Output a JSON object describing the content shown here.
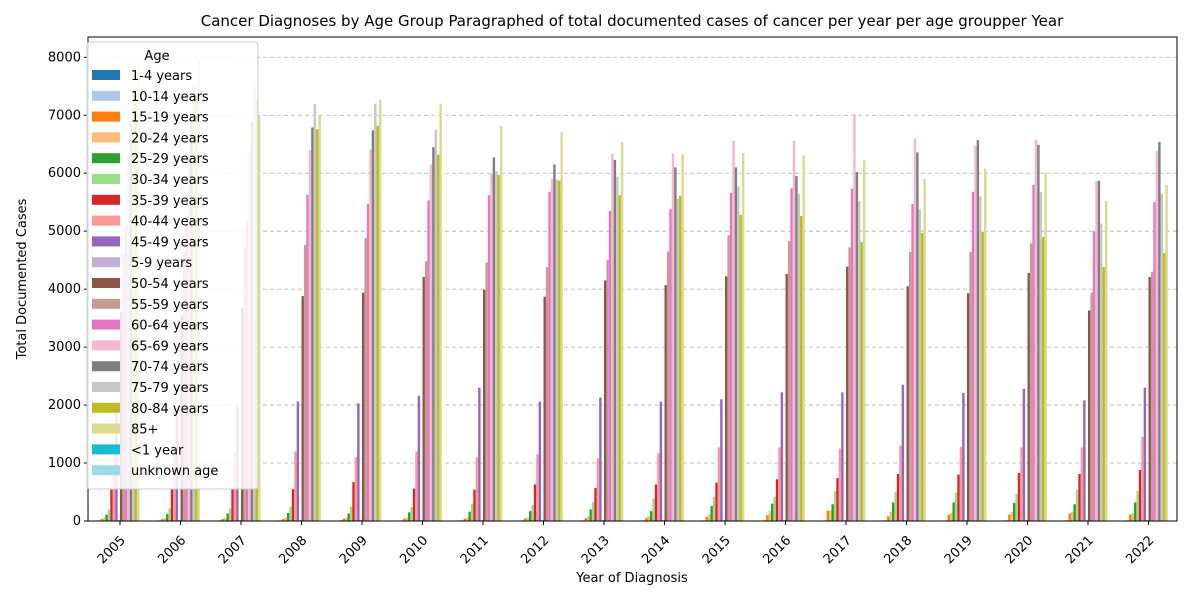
{
  "chart_data": {
    "type": "bar",
    "title": "Cancer Diagnoses by Age Group Paragraphed of total documented cases of cancer per year per age groupper Year",
    "xlabel": "Year of Diagnosis",
    "ylabel": "Total Documented Cases",
    "ylim": [
      0,
      8350
    ],
    "yticks": [
      0,
      1000,
      2000,
      3000,
      4000,
      5000,
      6000,
      7000,
      8000
    ],
    "grid": "y dashed",
    "legend_title": "Age",
    "legend_position": "upper-left",
    "categories": [
      "2005",
      "2006",
      "2007",
      "2008",
      "2009",
      "2010",
      "2011",
      "2012",
      "2013",
      "2014",
      "2015",
      "2016",
      "2017",
      "2018",
      "2019",
      "2020",
      "2021",
      "2022"
    ],
    "series": [
      {
        "name": "1-4 years",
        "color": "#1f77b4",
        "values": [
          10,
          10,
          10,
          10,
          10,
          10,
          10,
          10,
          10,
          10,
          10,
          10,
          10,
          10,
          10,
          10,
          10,
          10
        ]
      },
      {
        "name": "10-14 years",
        "color": "#aec7e8",
        "values": [
          15,
          15,
          15,
          15,
          15,
          15,
          15,
          15,
          15,
          15,
          15,
          15,
          15,
          15,
          15,
          15,
          15,
          15
        ]
      },
      {
        "name": "15-19 years",
        "color": "#ff7f0e",
        "values": [
          35,
          35,
          35,
          35,
          40,
          40,
          40,
          45,
          50,
          55,
          70,
          100,
          180,
          80,
          110,
          110,
          130,
          110
        ]
      },
      {
        "name": "20-24 years",
        "color": "#ffbb78",
        "values": [
          60,
          50,
          50,
          60,
          60,
          60,
          60,
          60,
          80,
          80,
          110,
          170,
          180,
          160,
          140,
          160,
          160,
          140
        ]
      },
      {
        "name": "25-29 years",
        "color": "#2ca02c",
        "values": [
          110,
          120,
          130,
          140,
          130,
          150,
          160,
          170,
          200,
          170,
          260,
          300,
          290,
          320,
          320,
          310,
          290,
          320
        ]
      },
      {
        "name": "30-34 years",
        "color": "#98df8a",
        "values": [
          200,
          220,
          220,
          250,
          250,
          240,
          300,
          280,
          330,
          390,
          420,
          420,
          510,
          510,
          490,
          470,
          540,
          520
        ]
      },
      {
        "name": "35-39 years",
        "color": "#d62728",
        "values": [
          560,
          580,
          560,
          550,
          670,
          560,
          540,
          630,
          570,
          630,
          660,
          720,
          740,
          810,
          800,
          830,
          810,
          880
        ]
      },
      {
        "name": "40-44 years",
        "color": "#ff9896",
        "values": [
          1150,
          1150,
          1180,
          1200,
          1100,
          1200,
          1100,
          1150,
          1080,
          1170,
          1270,
          1270,
          1250,
          1300,
          1280,
          1270,
          1270,
          1450
        ]
      },
      {
        "name": "45-49 years",
        "color": "#9467bd",
        "values": [
          2000,
          1950,
          1980,
          2060,
          2030,
          2160,
          2300,
          2060,
          2130,
          2060,
          2100,
          2220,
          2220,
          2350,
          2210,
          2280,
          2080,
          2300
        ]
      },
      {
        "name": "5-9 years",
        "color": "#c5b0d5",
        "values": [
          20,
          20,
          20,
          20,
          20,
          20,
          20,
          20,
          20,
          20,
          20,
          20,
          20,
          20,
          20,
          20,
          20,
          20
        ]
      },
      {
        "name": "50-54 years",
        "color": "#8c564b",
        "values": [
          3600,
          3550,
          3680,
          3880,
          3940,
          4210,
          3990,
          3870,
          4150,
          4070,
          4220,
          4260,
          4390,
          4050,
          3930,
          4280,
          3630,
          4210
        ]
      },
      {
        "name": "55-59 years",
        "color": "#c49c94",
        "values": [
          4600,
          4650,
          4720,
          4760,
          4880,
          4480,
          4460,
          4380,
          4500,
          4650,
          4930,
          4830,
          4720,
          4640,
          4640,
          4790,
          3940,
          4300
        ]
      },
      {
        "name": "60-64 years",
        "color": "#e377c2",
        "values": [
          5100,
          5150,
          5180,
          5630,
          5470,
          5530,
          5620,
          5680,
          5350,
          5380,
          5660,
          5740,
          5730,
          5470,
          5680,
          5800,
          5000,
          5500
        ]
      },
      {
        "name": "65-69 years",
        "color": "#f7b6d2",
        "values": [
          6300,
          6320,
          6380,
          6400,
          6410,
          6150,
          6000,
          5900,
          6340,
          6340,
          6560,
          6560,
          7020,
          6600,
          6470,
          6580,
          5860,
          6380
        ]
      },
      {
        "name": "70-74 years",
        "color": "#7f7f7f",
        "values": [
          6850,
          6870,
          6890,
          6790,
          6740,
          6450,
          6270,
          6150,
          6230,
          6100,
          6100,
          5950,
          6020,
          6360,
          6570,
          6490,
          5870,
          6540
        ]
      },
      {
        "name": "75-79 years",
        "color": "#c7c7c7",
        "values": [
          7500,
          7550,
          7590,
          7190,
          7200,
          6750,
          6040,
          5890,
          5940,
          5560,
          5770,
          5640,
          5520,
          5380,
          5600,
          5680,
          5130,
          5650
        ]
      },
      {
        "name": "80-84 years",
        "color": "#bcbd22",
        "values": [
          7200,
          7250,
          7290,
          6760,
          6820,
          6320,
          5970,
          5870,
          5620,
          5610,
          5280,
          5260,
          4810,
          4970,
          4990,
          4900,
          4380,
          4620
        ]
      },
      {
        "name": "85+",
        "color": "#dbdb8d",
        "values": [
          7900,
          7950,
          7000,
          7000,
          7270,
          7200,
          6810,
          6710,
          6540,
          6330,
          6350,
          6310,
          6230,
          5900,
          6080,
          6010,
          5520,
          5800
        ]
      },
      {
        "name": "<1 year",
        "color": "#17becf",
        "values": [
          5,
          5,
          5,
          5,
          5,
          5,
          5,
          5,
          5,
          5,
          5,
          5,
          5,
          5,
          5,
          5,
          5,
          5
        ]
      },
      {
        "name": "unknown age",
        "color": "#9edae5",
        "values": [
          2,
          2,
          2,
          2,
          2,
          2,
          2,
          2,
          2,
          2,
          2,
          2,
          2,
          2,
          2,
          2,
          2,
          2
        ]
      }
    ]
  }
}
